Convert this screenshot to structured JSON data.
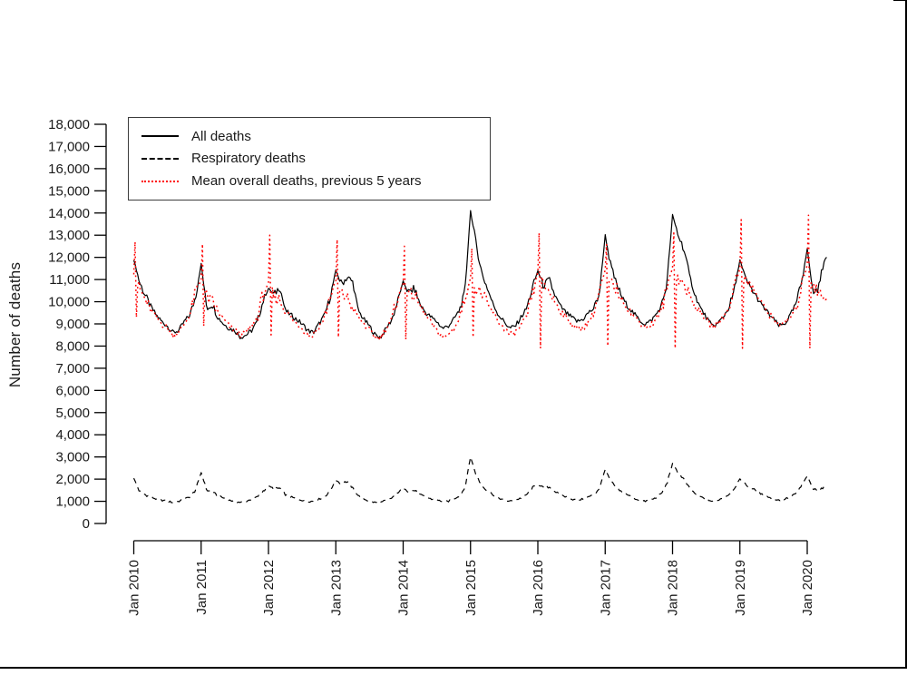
{
  "page": {
    "background_color": "#ffffff",
    "frame_color": "#000000"
  },
  "legend": {
    "entries": [
      {
        "label": "All deaths"
      },
      {
        "label": "Respiratory deaths"
      },
      {
        "label": "Mean overall deaths, previous 5 years"
      }
    ]
  },
  "chart_data": {
    "type": "line",
    "title": "",
    "xlabel": "",
    "ylabel": "Number of deaths",
    "ylim": [
      0,
      18000
    ],
    "ytick_step": 1000,
    "y_tick_labels": [
      "0",
      "1,000",
      "2,000",
      "3,000",
      "4,000",
      "5,000",
      "6,000",
      "7,000",
      "8,000",
      "9,000",
      "10,000",
      "11,000",
      "12,000",
      "13,000",
      "14,000",
      "15,000",
      "16,000",
      "17,000",
      "18,000"
    ],
    "x_tick_labels": [
      "Jan 2010",
      "Jan 2011",
      "Jan 2012",
      "Jan 2013",
      "Jan 2014",
      "Jan 2015",
      "Jan 2016",
      "Jan 2017",
      "Jan 2018",
      "Jan 2019",
      "Jan 2020"
    ],
    "x_range_years": [
      2010.0,
      2020.29
    ],
    "sampling": "weekly",
    "grid": false,
    "legend_position": "top-left-inside",
    "axis_color": "#000000",
    "note_monthly_values": "anchor values read from plot, Jan 2010 through Apr 2020, in deaths per week",
    "series": [
      {
        "name": "all-deaths",
        "legend_label": "All deaths",
        "color": "#000000",
        "line_style": "solid",
        "jitter_amplitude": 130,
        "monthly_values": [
          11900,
          10900,
          10300,
          9800,
          9400,
          9100,
          8900,
          8600,
          8700,
          9100,
          9400,
          10200,
          11700,
          9700,
          9900,
          9300,
          9000,
          8800,
          8700,
          8400,
          8500,
          8700,
          9100,
          10000,
          10600,
          10300,
          10700,
          9600,
          9400,
          9200,
          9000,
          8700,
          8600,
          9000,
          9400,
          10200,
          11400,
          10800,
          11100,
          10900,
          9600,
          9200,
          8900,
          8500,
          8400,
          8800,
          9200,
          10000,
          10900,
          10400,
          10600,
          9900,
          9500,
          9300,
          9100,
          8800,
          8900,
          9200,
          9600,
          10400,
          14100,
          12600,
          11300,
          10600,
          9900,
          9400,
          9100,
          8800,
          8900,
          9300,
          9700,
          10600,
          11400,
          10700,
          11000,
          10300,
          9800,
          9500,
          9300,
          9100,
          9200,
          9500,
          9700,
          10400,
          13000,
          11600,
          10800,
          10200,
          9800,
          9500,
          9200,
          9000,
          9100,
          9400,
          9800,
          10800,
          13900,
          13000,
          12400,
          11200,
          10300,
          9700,
          9300,
          8900,
          9000,
          9300,
          9700,
          10500,
          11900,
          11000,
          10600,
          10200,
          9800,
          9500,
          9200,
          8900,
          9000,
          9400,
          9900,
          10900,
          12400,
          10400,
          10600,
          11900
        ]
      },
      {
        "name": "respiratory-deaths",
        "legend_label": "Respiratory deaths",
        "color": "#000000",
        "line_style": "dashed",
        "jitter_amplitude": 45,
        "monthly_values": [
          2050,
          1450,
          1300,
          1200,
          1100,
          1050,
          1000,
          950,
          1000,
          1100,
          1200,
          1500,
          2300,
          1500,
          1400,
          1250,
          1150,
          1050,
          1000,
          950,
          1000,
          1100,
          1200,
          1450,
          1700,
          1550,
          1600,
          1300,
          1200,
          1100,
          1050,
          1000,
          1000,
          1100,
          1200,
          1500,
          1950,
          1800,
          1900,
          1600,
          1250,
          1100,
          1000,
          950,
          950,
          1050,
          1150,
          1400,
          1600,
          1450,
          1500,
          1300,
          1200,
          1100,
          1050,
          1000,
          1000,
          1100,
          1250,
          1600,
          3000,
          2200,
          1700,
          1500,
          1300,
          1150,
          1050,
          1000,
          1050,
          1150,
          1300,
          1600,
          1750,
          1600,
          1650,
          1450,
          1300,
          1200,
          1100,
          1050,
          1100,
          1200,
          1300,
          1600,
          2450,
          1900,
          1600,
          1400,
          1300,
          1150,
          1050,
          1000,
          1050,
          1150,
          1350,
          1800,
          2700,
          2300,
          2000,
          1600,
          1350,
          1200,
          1100,
          1000,
          1050,
          1150,
          1300,
          1600,
          2000,
          1750,
          1600,
          1450,
          1300,
          1200,
          1100,
          1050,
          1100,
          1200,
          1350,
          1700,
          2150,
          1550,
          1500,
          1650
        ]
      },
      {
        "name": "mean-overall-deaths-prev-5y",
        "legend_label": "Mean overall deaths, previous 5 years",
        "color": "#ff0000",
        "line_style": "dotted",
        "jitter_amplitude": 170,
        "monthly_values": [
          11300,
          10600,
          10100,
          9600,
          9300,
          9000,
          8800,
          8500,
          8600,
          9000,
          9400,
          10400,
          11000,
          10200,
          10000,
          9500,
          9200,
          8900,
          8700,
          8500,
          8600,
          8900,
          9300,
          10300,
          10800,
          10200,
          10100,
          9600,
          9300,
          9000,
          8800,
          8500,
          8500,
          8900,
          9300,
          10300,
          10900,
          10300,
          10200,
          9700,
          9300,
          9000,
          8700,
          8400,
          8400,
          8800,
          9200,
          10200,
          10800,
          10300,
          10300,
          9800,
          9400,
          9000,
          8700,
          8400,
          8500,
          8800,
          9200,
          10200,
          11000,
          10500,
          10400,
          9900,
          9500,
          9100,
          8800,
          8500,
          8600,
          8900,
          9300,
          10300,
          11300,
          10700,
          10500,
          10000,
          9600,
          9300,
          9000,
          8800,
          8800,
          9100,
          9500,
          10500,
          11400,
          10800,
          10600,
          10100,
          9700,
          9400,
          9100,
          8900,
          8900,
          9200,
          9600,
          10600,
          11600,
          11000,
          10800,
          10300,
          9800,
          9500,
          9200,
          8900,
          9000,
          9300,
          9700,
          10700,
          11500,
          10900,
          10700,
          10300,
          9900,
          9500,
          9200,
          9000,
          9000,
          9300,
          9700,
          10700,
          11700,
          10800,
          10400,
          10200
        ],
        "new_year_events": [
          {
            "year": 2010,
            "spike": 12700,
            "dip": 9300
          },
          {
            "year": 2011,
            "spike": 12600,
            "dip": 8900
          },
          {
            "year": 2012,
            "spike": 13000,
            "dip": 8500
          },
          {
            "year": 2013,
            "spike": 12800,
            "dip": 8400
          },
          {
            "year": 2014,
            "spike": 12500,
            "dip": 8300
          },
          {
            "year": 2015,
            "spike": 12400,
            "dip": 8400
          },
          {
            "year": 2016,
            "spike": 13100,
            "dip": 7900
          },
          {
            "year": 2017,
            "spike": 12600,
            "dip": 8000
          },
          {
            "year": 2018,
            "spike": 13100,
            "dip": 7900
          },
          {
            "year": 2019,
            "spike": 13700,
            "dip": 7900
          },
          {
            "year": 2020,
            "spike": 13900,
            "dip": 7900
          }
        ]
      }
    ]
  }
}
